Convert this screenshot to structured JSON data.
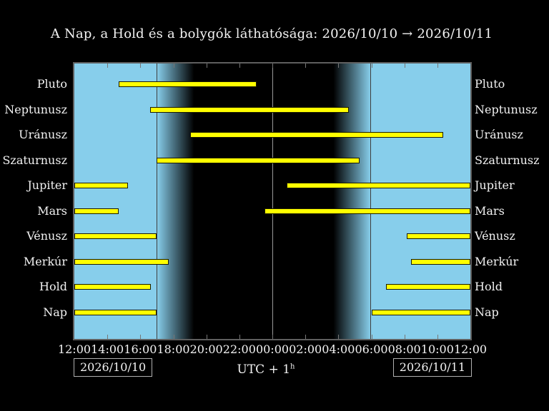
{
  "title": "A Nap, a Hold és a bolygók láthatósága: 2026/10/10 → 2026/10/11",
  "footer": {
    "start_date": "2026/10/10",
    "end_date": "2026/10/11",
    "timezone_label": "UTC + 1",
    "timezone_sup": "h"
  },
  "colors": {
    "background": "#000000",
    "day_sky": "#87CEEB",
    "night_sky": "#000000",
    "bar_fill": "#FFFF00",
    "bar_outline": "#1a1a00",
    "frame": "#5f5f5f",
    "tick": "#777777",
    "midnight_line": "#999999",
    "twilight_line": "#3d3d3d",
    "text": "#f2f2f2",
    "box_border": "#b0b0b0"
  },
  "chart_data": {
    "type": "timeline",
    "title": "A Nap, a Hold és a bolygók láthatósága: 2026/10/10 → 2026/10/11",
    "x_axis": {
      "hours_span": 24,
      "origin_label": "12:00",
      "tick_step_hours": 2,
      "tick_labels": [
        "12:00",
        "14:00",
        "16:00",
        "18:00",
        "20:00",
        "22:00",
        "00:00",
        "02:00",
        "04:00",
        "06:00",
        "08:00",
        "10:00",
        "12:00"
      ]
    },
    "interval_units": "hours after 12:00 local time",
    "rows": [
      {
        "label": "Pluto",
        "intervals_h": [
          [
            2.7,
            11.05
          ]
        ]
      },
      {
        "label": "Neptunusz",
        "intervals_h": [
          [
            4.6,
            16.65
          ]
        ]
      },
      {
        "label": "Uránusz",
        "intervals_h": [
          [
            7.0,
            22.35
          ]
        ]
      },
      {
        "label": "Szaturnusz",
        "intervals_h": [
          [
            5.0,
            17.3
          ]
        ]
      },
      {
        "label": "Jupiter",
        "intervals_h": [
          [
            0.0,
            3.25
          ],
          [
            12.85,
            24.0
          ]
        ]
      },
      {
        "label": "Mars",
        "intervals_h": [
          [
            0.0,
            2.7
          ],
          [
            11.52,
            24.0
          ]
        ]
      },
      {
        "label": "Vénusz",
        "intervals_h": [
          [
            0.0,
            5.0
          ],
          [
            20.15,
            24.0
          ]
        ]
      },
      {
        "label": "Merkúr",
        "intervals_h": [
          [
            0.0,
            5.72
          ],
          [
            20.42,
            24.0
          ]
        ]
      },
      {
        "label": "Hold",
        "intervals_h": [
          [
            0.0,
            4.64
          ],
          [
            18.87,
            24.0
          ]
        ]
      },
      {
        "label": "Nap",
        "intervals_h": [
          [
            0.0,
            5.0
          ],
          [
            18.0,
            24.0
          ]
        ]
      }
    ],
    "day_night": {
      "sunset_h": 5.0,
      "dusk_end_h": 7.25,
      "dawn_start_h": 15.7,
      "sunrise_h": 17.95,
      "midnight_h": 12.0
    },
    "legend_position": "none",
    "grid": "midnight line only"
  }
}
